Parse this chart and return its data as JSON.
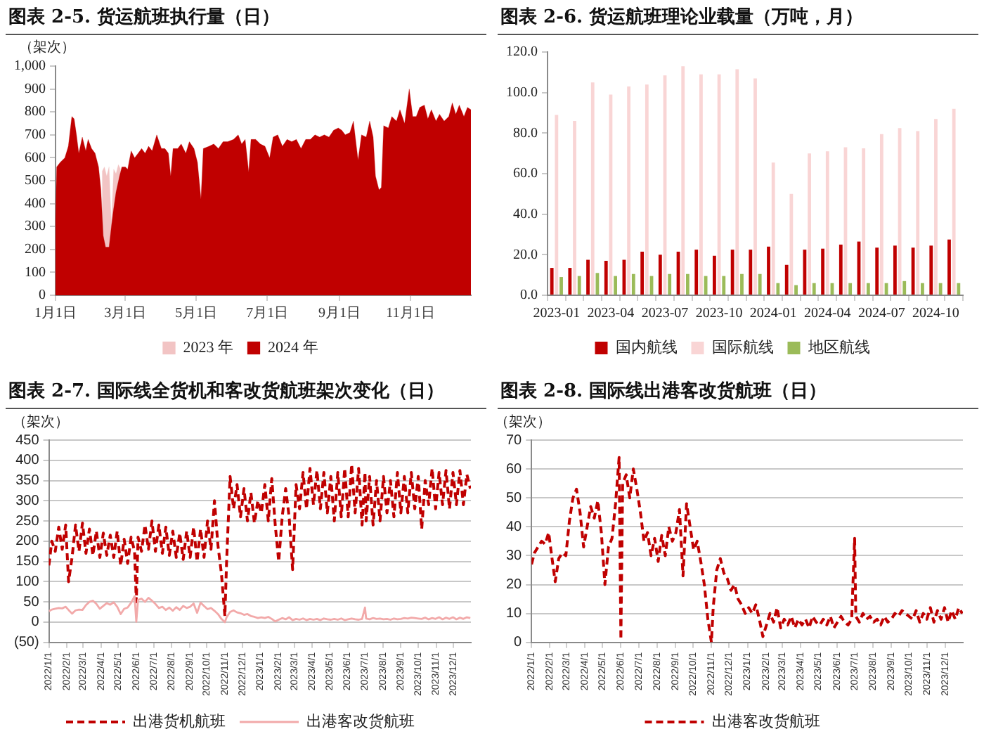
{
  "chart_data": [
    {
      "type": "area",
      "title": "图表 2-5. 货运航班执行量（日）",
      "ylabel": "（架次）",
      "legend": "bottom",
      "xlim": [
        "--01-01",
        "--12-23"
      ],
      "xticks": [
        {
          "value": "--01-01",
          "label": "1月1日"
        },
        {
          "value": "--03-01",
          "label": "3月1日"
        },
        {
          "value": "--05-01",
          "label": "5月1日"
        },
        {
          "value": "--07-01",
          "label": "7月1日"
        },
        {
          "value": "--09-01",
          "label": "9月1日"
        },
        {
          "value": "--11-01",
          "label": "11月1日"
        }
      ],
      "ylim": [
        0,
        1000
      ],
      "yticks": [
        0,
        100,
        200,
        300,
        400,
        500,
        600,
        700,
        800,
        900,
        {
          "value": 1000,
          "label": "1,000"
        }
      ],
      "series": [
        {
          "name": "2023 年",
          "color": "#f2c4c4",
          "x": [
            "--02-10",
            "--02-12",
            "--02-14",
            "--02-16",
            "--02-18",
            "--02-20",
            "--02-22",
            "--02-24",
            "--02-26"
          ],
          "values": [
            540,
            560,
            520,
            560,
            310,
            550,
            530,
            570,
            550
          ]
        },
        {
          "name": "2024 年",
          "color": "#c00000",
          "x": [
            "--01-01",
            "--01-02",
            "--01-05",
            "--01-09",
            "--01-12",
            "--01-15",
            "--01-17",
            "--01-19",
            "--01-21",
            "--01-24",
            "--01-27",
            "--01-29",
            "--02-01",
            "--02-04",
            "--02-07",
            "--02-09",
            "--02-11",
            "--02-13",
            "--02-16",
            "--02-18",
            "--02-20",
            "--02-22",
            "--02-25",
            "--02-27",
            "--03-01",
            "--03-03",
            "--03-06",
            "--03-09",
            "--03-12",
            "--03-15",
            "--03-18",
            "--03-21",
            "--03-24",
            "--03-28",
            "--04-01",
            "--04-04",
            "--04-07",
            "--04-09",
            "--04-11",
            "--04-15",
            "--04-18",
            "--04-22",
            "--04-25",
            "--04-29",
            "--05-02",
            "--05-05",
            "--05-07",
            "--05-12",
            "--05-16",
            "--05-20",
            "--05-24",
            "--05-28",
            "--06-02",
            "--06-06",
            "--06-09",
            "--06-12",
            "--06-15",
            "--06-17",
            "--06-21",
            "--06-25",
            "--06-29",
            "--07-03",
            "--07-06",
            "--07-10",
            "--07-14",
            "--07-18",
            "--07-22",
            "--07-26",
            "--07-30",
            "--08-03",
            "--08-07",
            "--08-11",
            "--08-15",
            "--08-19",
            "--08-23",
            "--08-27",
            "--08-31",
            "--09-03",
            "--09-06",
            "--09-10",
            "--09-13",
            "--09-17",
            "--09-20",
            "--09-24",
            "--09-27",
            "--09-30",
            "--10-02",
            "--10-05",
            "--10-07",
            "--10-09",
            "--10-13",
            "--10-16",
            "--10-20",
            "--10-23",
            "--10-27",
            "--10-31",
            "--11-03",
            "--11-06",
            "--11-09",
            "--11-13",
            "--11-16",
            "--11-19",
            "--11-23",
            "--11-26",
            "--11-30",
            "--12-04",
            "--12-07",
            "--12-10",
            "--12-13",
            "--12-17",
            "--12-20",
            "--12-23"
          ],
          "values": [
            330,
            560,
            580,
            600,
            650,
            780,
            770,
            700,
            620,
            690,
            630,
            680,
            640,
            620,
            560,
            460,
            260,
            210,
            210,
            300,
            380,
            450,
            520,
            560,
            560,
            550,
            630,
            600,
            620,
            640,
            620,
            650,
            630,
            700,
            640,
            640,
            620,
            520,
            640,
            640,
            660,
            620,
            670,
            640,
            580,
            420,
            640,
            650,
            660,
            640,
            670,
            670,
            680,
            700,
            660,
            680,
            540,
            680,
            680,
            660,
            650,
            600,
            690,
            700,
            650,
            680,
            670,
            680,
            640,
            680,
            680,
            700,
            690,
            700,
            690,
            720,
            730,
            720,
            700,
            710,
            760,
            590,
            700,
            690,
            760,
            690,
            520,
            460,
            470,
            740,
            730,
            780,
            760,
            810,
            750,
            900,
            780,
            780,
            820,
            830,
            770,
            810,
            760,
            790,
            760,
            780,
            840,
            790,
            830,
            780,
            820,
            810
          ]
        }
      ]
    },
    {
      "type": "bar",
      "title": "图表 2-6. 货运航班理论业载量（万吨，月）",
      "legend": "bottom",
      "categories": [
        "2023-01",
        null,
        null,
        "2023-04",
        null,
        null,
        "2023-07",
        null,
        null,
        "2023-10",
        null,
        null,
        "2024-01",
        null,
        null,
        "2024-04",
        null,
        null,
        "2024-07",
        null,
        null,
        "2024-10",
        null
      ],
      "ylim": [
        0,
        120
      ],
      "yticks": [
        {
          "value": 0,
          "label": "0.0"
        },
        {
          "value": 20,
          "label": "20.0"
        },
        {
          "value": 40,
          "label": "40.0"
        },
        {
          "value": 60,
          "label": "60.0"
        },
        {
          "value": 80,
          "label": "80.0"
        },
        {
          "value": 100,
          "label": "100.0"
        },
        {
          "value": 120,
          "label": "120.0"
        }
      ],
      "series": [
        {
          "name": "国内航线",
          "color": "#c00000",
          "values": [
            13.5,
            13.5,
            17.5,
            17,
            17.5,
            21.5,
            20,
            21.5,
            22.5,
            19.5,
            22.5,
            22.5,
            24,
            15,
            22.5,
            23,
            25,
            26.5,
            23.5,
            24.5,
            23.5,
            24.5,
            27.5
          ]
        },
        {
          "name": "国际航线",
          "color": "#f9d5d5",
          "values": [
            89,
            86,
            105,
            99,
            103,
            104,
            108.5,
            113,
            109,
            109,
            111.5,
            107,
            65.5,
            50,
            70,
            71,
            73,
            72.5,
            79.5,
            82.5,
            81,
            87,
            92
          ]
        },
        {
          "name": "地区航线",
          "color": "#9bbb59",
          "values": [
            9,
            9.5,
            11,
            9.5,
            10.5,
            9.5,
            10.5,
            10.5,
            9.5,
            9.5,
            10.5,
            10.5,
            6,
            5,
            6,
            6,
            6,
            6,
            6,
            7,
            6,
            6,
            6
          ]
        }
      ]
    },
    {
      "type": "line",
      "title": "图表 2-7. 国际线全货机和客改货航班架次变化（日）",
      "ylabel": "（架次）",
      "legend": "bottom",
      "grid": "y",
      "xlim": [
        "2022-01-01",
        "2023-12-31"
      ],
      "xticks": [
        {
          "value": "2022-01-01",
          "label": "2022/1/1"
        },
        {
          "value": "2022-02-01",
          "label": "2022/2/1"
        },
        {
          "value": "2022-03-01",
          "label": "2022/3/1"
        },
        {
          "value": "2022-04-01",
          "label": "2022/4/1"
        },
        {
          "value": "2022-05-01",
          "label": "2022/5/1"
        },
        {
          "value": "2022-06-01",
          "label": "2022/6/1"
        },
        {
          "value": "2022-07-01",
          "label": "2022/7/1"
        },
        {
          "value": "2022-08-01",
          "label": "2022/8/1"
        },
        {
          "value": "2022-09-01",
          "label": "2022/9/1"
        },
        {
          "value": "2022-10-01",
          "label": "2022/10/1"
        },
        {
          "value": "2022-11-01",
          "label": "2022/11/1"
        },
        {
          "value": "2022-12-01",
          "label": "2022/12/1"
        },
        {
          "value": "2023-01-01",
          "label": "2023/1/1"
        },
        {
          "value": "2023-02-01",
          "label": "2023/2/1"
        },
        {
          "value": "2023-03-01",
          "label": "2023/3/1"
        },
        {
          "value": "2023-04-01",
          "label": "2023/4/1"
        },
        {
          "value": "2023-05-01",
          "label": "2023/5/1"
        },
        {
          "value": "2023-06-01",
          "label": "2023/6/1"
        },
        {
          "value": "2023-07-01",
          "label": "2023/7/1"
        },
        {
          "value": "2023-08-01",
          "label": "2023/8/1"
        },
        {
          "value": "2023-09-01",
          "label": "2023/9/1"
        },
        {
          "value": "2023-10-01",
          "label": "2023/10/1"
        },
        {
          "value": "2023-11-01",
          "label": "2023/11/1"
        },
        {
          "value": "2023-12-01",
          "label": "2023/12/1"
        }
      ],
      "ylim": [
        -50,
        450
      ],
      "yticks": [
        {
          "value": -50,
          "label": "(50)"
        },
        0,
        50,
        100,
        150,
        200,
        250,
        300,
        350,
        400,
        450
      ],
      "x": [
        "2022-01-01",
        "2022-01-06",
        "2022-01-12",
        "2022-01-18",
        "2022-01-24",
        "2022-01-30",
        "2022-02-04",
        "2022-02-10",
        "2022-02-16",
        "2022-02-22",
        "2022-02-28",
        "2022-03-06",
        "2022-03-12",
        "2022-03-18",
        "2022-03-24",
        "2022-03-30",
        "2022-04-05",
        "2022-04-11",
        "2022-04-17",
        "2022-04-23",
        "2022-04-29",
        "2022-05-05",
        "2022-05-11",
        "2022-05-17",
        "2022-05-23",
        "2022-05-29",
        "2022-06-01",
        "2022-06-04",
        "2022-06-10",
        "2022-06-16",
        "2022-06-22",
        "2022-06-28",
        "2022-07-04",
        "2022-07-10",
        "2022-07-16",
        "2022-07-22",
        "2022-07-28",
        "2022-08-03",
        "2022-08-09",
        "2022-08-15",
        "2022-08-21",
        "2022-08-27",
        "2022-09-02",
        "2022-09-08",
        "2022-09-14",
        "2022-09-20",
        "2022-09-26",
        "2022-10-02",
        "2022-10-08",
        "2022-10-14",
        "2022-10-20",
        "2022-10-26",
        "2022-11-01",
        "2022-11-04",
        "2022-11-10",
        "2022-11-16",
        "2022-11-22",
        "2022-11-28",
        "2022-12-04",
        "2022-12-10",
        "2022-12-16",
        "2022-12-22",
        "2022-12-28",
        "2023-01-03",
        "2023-01-09",
        "2023-01-15",
        "2023-01-21",
        "2023-01-27",
        "2023-02-02",
        "2023-02-08",
        "2023-02-14",
        "2023-02-20",
        "2023-02-26",
        "2023-03-04",
        "2023-03-10",
        "2023-03-16",
        "2023-03-22",
        "2023-03-28",
        "2023-04-03",
        "2023-04-09",
        "2023-04-15",
        "2023-04-21",
        "2023-04-27",
        "2023-05-03",
        "2023-05-09",
        "2023-05-15",
        "2023-05-21",
        "2023-05-27",
        "2023-06-02",
        "2023-06-08",
        "2023-06-14",
        "2023-06-20",
        "2023-06-26",
        "2023-07-01",
        "2023-07-03",
        "2023-07-09",
        "2023-07-15",
        "2023-07-21",
        "2023-07-27",
        "2023-08-02",
        "2023-08-08",
        "2023-08-14",
        "2023-08-20",
        "2023-08-26",
        "2023-09-01",
        "2023-09-07",
        "2023-09-13",
        "2023-09-19",
        "2023-09-25",
        "2023-10-01",
        "2023-10-07",
        "2023-10-13",
        "2023-10-19",
        "2023-10-25",
        "2023-10-31",
        "2023-11-06",
        "2023-11-12",
        "2023-11-18",
        "2023-11-24",
        "2023-11-30",
        "2023-12-06",
        "2023-12-12",
        "2023-12-18",
        "2023-12-24",
        "2023-12-30"
      ],
      "series": [
        {
          "name": "出港货机航班",
          "color": "#c00000",
          "line_style": "dashed",
          "values": [
            140,
            200,
            175,
            235,
            180,
            240,
            100,
            160,
            240,
            175,
            245,
            170,
            230,
            165,
            225,
            160,
            220,
            165,
            215,
            160,
            225,
            140,
            205,
            145,
            210,
            175,
            50,
            210,
            175,
            240,
            180,
            250,
            175,
            240,
            170,
            235,
            165,
            225,
            160,
            220,
            155,
            225,
            160,
            235,
            150,
            230,
            160,
            250,
            180,
            300,
            190,
            120,
            15,
            150,
            360,
            280,
            340,
            260,
            330,
            250,
            320,
            245,
            300,
            270,
            340,
            250,
            355,
            240,
            150,
            260,
            330,
            260,
            130,
            340,
            280,
            370,
            280,
            380,
            290,
            375,
            280,
            370,
            270,
            360,
            250,
            370,
            260,
            380,
            260,
            390,
            270,
            380,
            240,
            370,
            250,
            360,
            240,
            350,
            250,
            360,
            270,
            350,
            260,
            370,
            270,
            360,
            270,
            370,
            280,
            360,
            230,
            350,
            290,
            380,
            280,
            370,
            290,
            375,
            280,
            370,
            290,
            375,
            290,
            365,
            330
          ]
        },
        {
          "name": "出港客改货航班",
          "color": "#f2a9a9",
          "values": [
            27,
            31,
            33,
            35,
            34,
            38,
            30,
            21,
            29,
            31,
            30,
            42,
            50,
            53,
            45,
            33,
            40,
            47,
            43,
            49,
            38,
            20,
            33,
            36,
            48,
            64,
            1,
            55,
            58,
            50,
            60,
            53,
            45,
            35,
            38,
            30,
            36,
            28,
            37,
            30,
            40,
            35,
            38,
            46,
            23,
            48,
            40,
            32,
            35,
            28,
            20,
            8,
            0,
            12,
            25,
            29,
            24,
            22,
            18,
            20,
            15,
            13,
            10,
            12,
            10,
            13,
            8,
            2,
            6,
            10,
            7,
            12,
            5,
            8,
            6,
            9,
            5,
            8,
            6,
            8,
            5,
            9,
            7,
            6,
            8,
            6,
            9,
            5,
            7,
            9,
            7,
            6,
            8,
            36,
            9,
            7,
            10,
            8,
            9,
            7,
            8,
            6,
            9,
            7,
            8,
            10,
            9,
            11,
            10,
            9,
            8,
            11,
            7,
            10,
            8,
            12,
            7,
            11,
            8,
            12,
            7,
            11,
            8,
            12,
            10
          ]
        }
      ]
    },
    {
      "type": "line",
      "title": "图表 2-8. 国际线出港客改货航班（日）",
      "ylabel": "（架次）",
      "legend": "bottom",
      "grid": "y",
      "xlim": [
        "2022-01-01",
        "2023-12-31"
      ],
      "xticks": [
        {
          "value": "2022-01-01",
          "label": "2022/1/1"
        },
        {
          "value": "2022-02-01",
          "label": "2022/2/1"
        },
        {
          "value": "2022-03-01",
          "label": "2022/3/1"
        },
        {
          "value": "2022-04-01",
          "label": "2022/4/1"
        },
        {
          "value": "2022-05-01",
          "label": "2022/5/1"
        },
        {
          "value": "2022-06-01",
          "label": "2022/6/1"
        },
        {
          "value": "2022-07-01",
          "label": "2022/7/1"
        },
        {
          "value": "2022-08-01",
          "label": "2022/8/1"
        },
        {
          "value": "2022-09-01",
          "label": "2022/9/1"
        },
        {
          "value": "2022-10-01",
          "label": "2022/10/1"
        },
        {
          "value": "2022-11-01",
          "label": "2022/11/1"
        },
        {
          "value": "2022-12-01",
          "label": "2022/12/1"
        },
        {
          "value": "2023-01-01",
          "label": "2023/1/1"
        },
        {
          "value": "2023-02-01",
          "label": "2023/2/1"
        },
        {
          "value": "2023-03-01",
          "label": "2023/3/1"
        },
        {
          "value": "2023-04-01",
          "label": "2023/4/1"
        },
        {
          "value": "2023-05-01",
          "label": "2023/5/1"
        },
        {
          "value": "2023-06-01",
          "label": "2023/6/1"
        },
        {
          "value": "2023-07-01",
          "label": "2023/7/1"
        },
        {
          "value": "2023-08-01",
          "label": "2023/8/1"
        },
        {
          "value": "2023-09-01",
          "label": "2023/9/1"
        },
        {
          "value": "2023-10-01",
          "label": "2023/10/1"
        },
        {
          "value": "2023-11-01",
          "label": "2023/11/1"
        },
        {
          "value": "2023-12-01",
          "label": "2023/12/1"
        }
      ],
      "ylim": [
        0,
        70
      ],
      "yticks": [
        0,
        10,
        20,
        30,
        40,
        50,
        60,
        70
      ],
      "x": [
        "2022-01-01",
        "2022-01-06",
        "2022-01-12",
        "2022-01-18",
        "2022-01-24",
        "2022-01-30",
        "2022-02-04",
        "2022-02-10",
        "2022-02-16",
        "2022-02-22",
        "2022-02-28",
        "2022-03-06",
        "2022-03-12",
        "2022-03-18",
        "2022-03-24",
        "2022-03-30",
        "2022-04-05",
        "2022-04-11",
        "2022-04-17",
        "2022-04-23",
        "2022-04-29",
        "2022-05-05",
        "2022-05-11",
        "2022-05-17",
        "2022-05-23",
        "2022-05-29",
        "2022-06-01",
        "2022-06-04",
        "2022-06-10",
        "2022-06-16",
        "2022-06-22",
        "2022-06-28",
        "2022-07-04",
        "2022-07-10",
        "2022-07-16",
        "2022-07-22",
        "2022-07-28",
        "2022-08-03",
        "2022-08-09",
        "2022-08-15",
        "2022-08-21",
        "2022-08-27",
        "2022-09-02",
        "2022-09-08",
        "2022-09-14",
        "2022-09-20",
        "2022-09-26",
        "2022-10-02",
        "2022-10-08",
        "2022-10-14",
        "2022-10-20",
        "2022-10-26",
        "2022-11-01",
        "2022-11-04",
        "2022-11-10",
        "2022-11-16",
        "2022-11-22",
        "2022-11-28",
        "2022-12-04",
        "2022-12-10",
        "2022-12-16",
        "2022-12-22",
        "2022-12-28",
        "2023-01-03",
        "2023-01-09",
        "2023-01-15",
        "2023-01-21",
        "2023-01-27",
        "2023-02-02",
        "2023-02-08",
        "2023-02-14",
        "2023-02-20",
        "2023-02-26",
        "2023-03-04",
        "2023-03-10",
        "2023-03-16",
        "2023-03-22",
        "2023-03-28",
        "2023-04-03",
        "2023-04-09",
        "2023-04-15",
        "2023-04-21",
        "2023-04-27",
        "2023-05-03",
        "2023-05-09",
        "2023-05-15",
        "2023-05-21",
        "2023-05-27",
        "2023-06-02",
        "2023-06-08",
        "2023-06-14",
        "2023-06-20",
        "2023-06-26",
        "2023-07-01",
        "2023-07-03",
        "2023-07-09",
        "2023-07-15",
        "2023-07-21",
        "2023-07-27",
        "2023-08-02",
        "2023-08-08",
        "2023-08-14",
        "2023-08-20",
        "2023-08-26",
        "2023-09-01",
        "2023-09-07",
        "2023-09-13",
        "2023-09-19",
        "2023-09-25",
        "2023-10-01",
        "2023-10-07",
        "2023-10-13",
        "2023-10-19",
        "2023-10-25",
        "2023-10-31",
        "2023-11-06",
        "2023-11-12",
        "2023-11-18",
        "2023-11-24",
        "2023-11-30",
        "2023-12-06",
        "2023-12-12",
        "2023-12-18",
        "2023-12-24",
        "2023-12-30"
      ],
      "series": [
        {
          "name": "出港客改货航班",
          "color": "#c00000",
          "line_style": "dashed",
          "values": [
            27,
            31,
            33,
            35,
            34,
            38,
            30,
            21,
            29,
            31,
            30,
            42,
            50,
            53,
            45,
            33,
            40,
            47,
            43,
            49,
            38,
            20,
            33,
            36,
            48,
            64,
            1,
            55,
            58,
            50,
            60,
            53,
            45,
            35,
            38,
            30,
            36,
            28,
            37,
            30,
            40,
            35,
            38,
            46,
            23,
            48,
            40,
            32,
            35,
            28,
            20,
            8,
            0,
            12,
            25,
            29,
            24,
            22,
            18,
            20,
            15,
            13,
            10,
            12,
            10,
            13,
            8,
            2,
            6,
            10,
            7,
            12,
            5,
            8,
            6,
            9,
            5,
            8,
            6,
            8,
            5,
            9,
            7,
            6,
            8,
            6,
            9,
            5,
            7,
            9,
            7,
            6,
            8,
            36,
            9,
            7,
            10,
            8,
            9,
            7,
            8,
            6,
            9,
            7,
            8,
            10,
            9,
            11,
            10,
            9,
            8,
            11,
            7,
            10,
            8,
            12,
            7,
            11,
            8,
            12,
            7,
            11,
            8,
            12,
            10
          ]
        }
      ]
    }
  ]
}
